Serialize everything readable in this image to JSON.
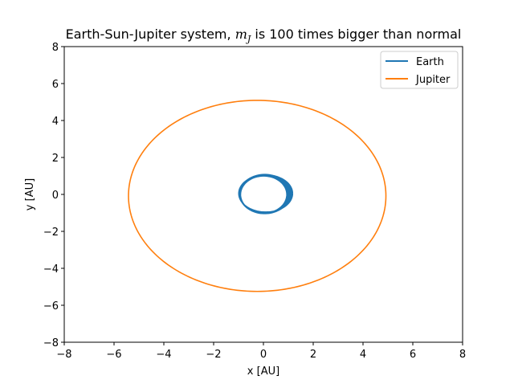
{
  "chart_data": {
    "type": "line",
    "title_prefix": "Earth-Sun-Jupiter system, ",
    "title_math_base": "m",
    "title_math_sub": "J",
    "title_suffix": " is 100 times bigger than normal",
    "xlabel": "x [AU]",
    "ylabel": "y [AU]",
    "xlim": [
      -8,
      8
    ],
    "ylim": [
      -8,
      8
    ],
    "xticks": [
      -8,
      -6,
      -4,
      -2,
      0,
      2,
      4,
      6,
      8
    ],
    "yticks": [
      -8,
      -6,
      -4,
      -2,
      0,
      2,
      4,
      6,
      8
    ],
    "xtick_labels": [
      "−8",
      "−6",
      "−4",
      "−2",
      "0",
      "2",
      "4",
      "6",
      "8"
    ],
    "ytick_labels": [
      "−8",
      "−6",
      "−4",
      "−2",
      "0",
      "2",
      "4",
      "6",
      "8"
    ],
    "grid": false,
    "legend_position": "top-right",
    "series": [
      {
        "name": "Earth",
        "color": "#1f77b4",
        "shape": "perturbed orbit band",
        "center": [
          0.05,
          0.02
        ],
        "radius_x_range": [
          0.93,
          1.08
        ],
        "radius_y_range": [
          0.88,
          1.06
        ]
      },
      {
        "name": "Jupiter",
        "color": "#ff7f0e",
        "shape": "orbit",
        "center": [
          -0.25,
          -0.08
        ],
        "radius_x": 5.17,
        "radius_y": 5.17
      }
    ]
  }
}
